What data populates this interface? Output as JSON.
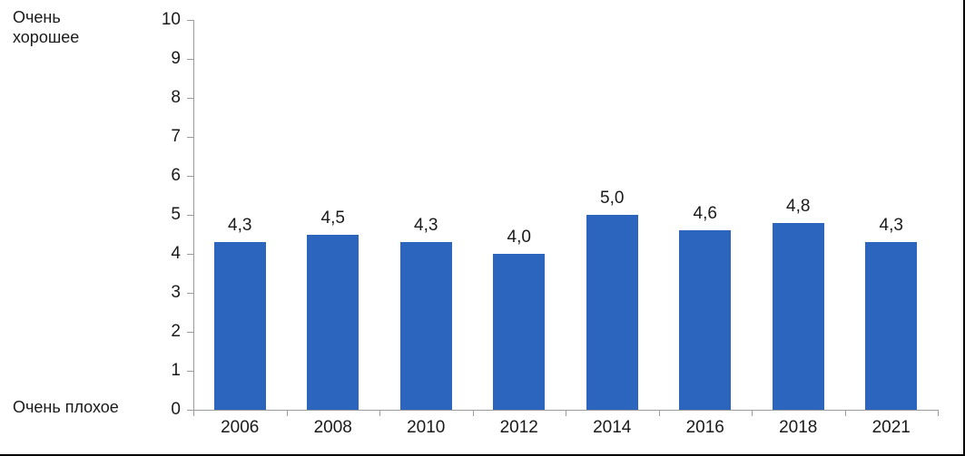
{
  "chart_data": {
    "type": "bar",
    "title": "",
    "categories": [
      "2006",
      "2008",
      "2010",
      "2012",
      "2014",
      "2016",
      "2018",
      "2021"
    ],
    "values": [
      4.3,
      4.5,
      4.3,
      4.0,
      5.0,
      4.6,
      4.8,
      4.3
    ],
    "value_labels": [
      "4,3",
      "4,5",
      "4,3",
      "4,0",
      "5,0",
      "4,6",
      "4,8",
      "4,3"
    ],
    "y_ticks": [
      0,
      1,
      2,
      3,
      4,
      5,
      6,
      7,
      8,
      9,
      10
    ],
    "ylim": [
      0,
      10
    ],
    "xlabel": "",
    "ylabel": "",
    "y_axis_top_label": "Очень хорошее",
    "y_axis_bottom_label": "Очень плохое",
    "grid": false,
    "legend": false,
    "bar_color": "#2B65BD",
    "axis_color": "#9B9B9B",
    "text_color": "#1a1a1a",
    "frame_border_color": "#000000"
  }
}
